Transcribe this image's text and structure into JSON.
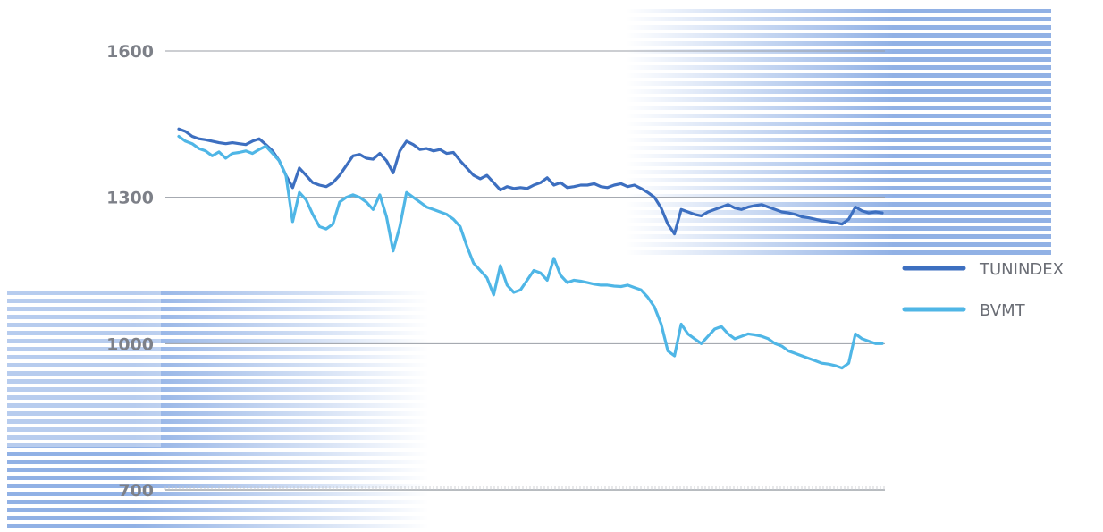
{
  "chart_data": {
    "type": "line",
    "title": "",
    "xlabel": "",
    "ylabel": "",
    "ylim": [
      700,
      1600
    ],
    "yticks": [
      700,
      1000,
      1300,
      1600
    ],
    "grid": true,
    "legend": "right",
    "series": [
      {
        "name": "TUNINDEX",
        "color": "#3d6fc0",
        "values": [
          1440,
          1435,
          1425,
          1420,
          1418,
          1415,
          1412,
          1410,
          1412,
          1410,
          1408,
          1415,
          1420,
          1408,
          1395,
          1375,
          1345,
          1320,
          1360,
          1345,
          1330,
          1325,
          1322,
          1330,
          1345,
          1365,
          1385,
          1388,
          1380,
          1378,
          1390,
          1375,
          1350,
          1395,
          1415,
          1408,
          1398,
          1400,
          1395,
          1398,
          1390,
          1392,
          1375,
          1360,
          1345,
          1338,
          1345,
          1330,
          1315,
          1322,
          1318,
          1320,
          1318,
          1325,
          1330,
          1340,
          1325,
          1330,
          1320,
          1322,
          1325,
          1325,
          1328,
          1322,
          1320,
          1325,
          1328,
          1322,
          1325,
          1318,
          1310,
          1300,
          1278,
          1245,
          1225,
          1275,
          1270,
          1265,
          1262,
          1270,
          1275,
          1280,
          1285,
          1278,
          1275,
          1280,
          1283,
          1285,
          1280,
          1275,
          1270,
          1268,
          1265,
          1260,
          1258,
          1255,
          1252,
          1250,
          1248,
          1245,
          1255,
          1280,
          1272,
          1268,
          1270,
          1268
        ]
      },
      {
        "name": "BVMT",
        "color": "#4fb6e6",
        "values": [
          1425,
          1415,
          1410,
          1400,
          1395,
          1385,
          1393,
          1380,
          1390,
          1392,
          1395,
          1390,
          1398,
          1405,
          1390,
          1375,
          1345,
          1250,
          1310,
          1295,
          1265,
          1240,
          1235,
          1245,
          1290,
          1300,
          1305,
          1300,
          1290,
          1275,
          1305,
          1260,
          1190,
          1240,
          1310,
          1300,
          1290,
          1280,
          1275,
          1270,
          1265,
          1255,
          1240,
          1200,
          1165,
          1150,
          1135,
          1100,
          1160,
          1120,
          1105,
          1110,
          1130,
          1150,
          1145,
          1130,
          1175,
          1140,
          1125,
          1130,
          1128,
          1125,
          1122,
          1120,
          1120,
          1118,
          1117,
          1120,
          1115,
          1110,
          1095,
          1075,
          1040,
          985,
          975,
          1040,
          1020,
          1010,
          1000,
          1015,
          1030,
          1035,
          1020,
          1010,
          1015,
          1020,
          1018,
          1015,
          1010,
          1000,
          995,
          985,
          980,
          975,
          970,
          965,
          960,
          958,
          955,
          950,
          960,
          1020,
          1010,
          1005,
          1000,
          1000
        ]
      }
    ]
  },
  "legend_entries": [
    {
      "label": "TUNINDEX",
      "color": "#3d6fc0"
    },
    {
      "label": "BVMT",
      "color": "#4fb6e6"
    }
  ],
  "decor": {
    "stripe_color": "#7ea3e0"
  }
}
